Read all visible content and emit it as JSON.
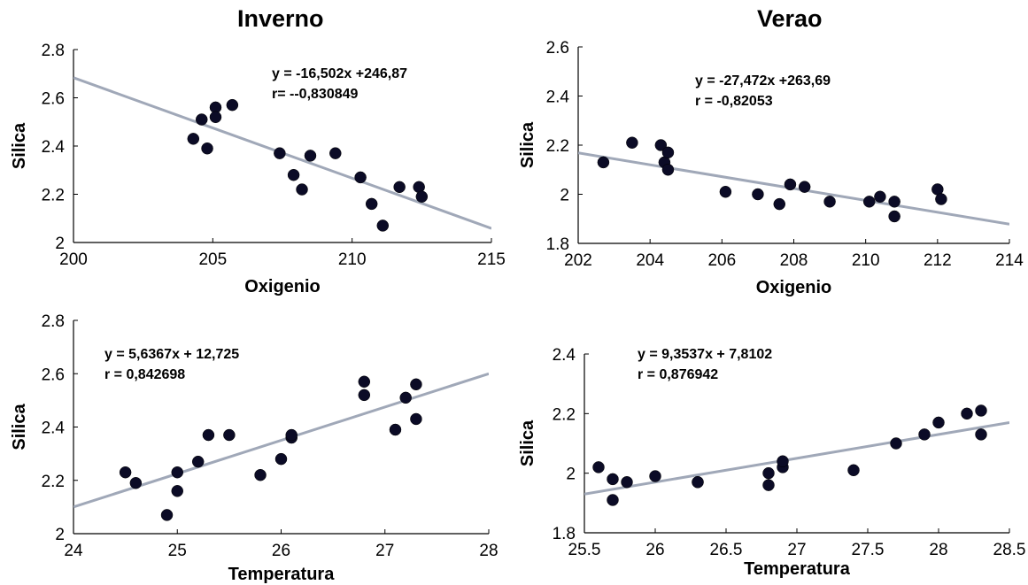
{
  "titles": {
    "left": "Inverno",
    "right": "Verao"
  },
  "chart_data": [
    {
      "type": "scatter",
      "title": "Inverno",
      "xlabel": "Oxigenio",
      "ylabel": "Silica",
      "xlim": [
        200,
        215
      ],
      "ylim": [
        2,
        2.8
      ],
      "xticks": [
        "200",
        "205",
        "210",
        "215"
      ],
      "yticks": [
        "2",
        "2.2",
        "2.4",
        "2.6",
        "2.8"
      ],
      "annotation": [
        "y = -16,502x +246,87",
        "r= --0,830849"
      ],
      "trendline": {
        "slope": -0.0416667,
        "intercept": 11.0167
      },
      "points": [
        [
          204.3,
          2.43
        ],
        [
          204.6,
          2.51
        ],
        [
          204.8,
          2.39
        ],
        [
          205.1,
          2.56
        ],
        [
          205.1,
          2.52
        ],
        [
          205.7,
          2.57
        ],
        [
          207.4,
          2.37
        ],
        [
          207.9,
          2.28
        ],
        [
          208.2,
          2.22
        ],
        [
          208.5,
          2.36
        ],
        [
          209.4,
          2.37
        ],
        [
          210.3,
          2.27
        ],
        [
          210.7,
          2.16
        ],
        [
          211.1,
          2.07
        ],
        [
          211.7,
          2.23
        ],
        [
          212.4,
          2.23
        ],
        [
          212.5,
          2.19
        ]
      ]
    },
    {
      "type": "scatter",
      "title": "Verao",
      "xlabel": "Oxigenio",
      "ylabel": "Silica",
      "xlim": [
        202,
        214
      ],
      "ylim": [
        1.8,
        2.6
      ],
      "xticks": [
        "202",
        "204",
        "206",
        "208",
        "210",
        "212",
        "214"
      ],
      "yticks": [
        "1.8",
        "2",
        "2.2",
        "2.4",
        "2.6"
      ],
      "annotation": [
        "y = -27,472x +263,69",
        "r = -0,82053"
      ],
      "trendline": {
        "slope": -0.0241667,
        "intercept": 7.05
      },
      "points": [
        [
          202.7,
          2.13
        ],
        [
          203.5,
          2.21
        ],
        [
          204.3,
          2.2
        ],
        [
          204.4,
          2.13
        ],
        [
          204.5,
          2.17
        ],
        [
          204.5,
          2.1
        ],
        [
          206.1,
          2.01
        ],
        [
          207,
          2
        ],
        [
          207.6,
          1.96
        ],
        [
          207.9,
          2.04
        ],
        [
          208.3,
          2.03
        ],
        [
          209,
          1.97
        ],
        [
          210.1,
          1.97
        ],
        [
          210.4,
          1.99
        ],
        [
          210.8,
          1.97
        ],
        [
          210.8,
          1.91
        ],
        [
          212,
          2.02
        ],
        [
          212.1,
          1.98
        ]
      ]
    },
    {
      "type": "scatter",
      "title": "",
      "xlabel": "Temperatura",
      "ylabel": "Silica",
      "xlim": [
        24,
        28
      ],
      "ylim": [
        2,
        2.8
      ],
      "xticks": [
        "24",
        "25",
        "26",
        "27",
        "28"
      ],
      "yticks": [
        "2",
        "2.2",
        "2.4",
        "2.6",
        "2.8"
      ],
      "annotation": [
        "y = 5,6367x + 12,725",
        "r = 0,842698"
      ],
      "trendline": {
        "slope": 0.125,
        "intercept": -0.9
      },
      "points": [
        [
          24.5,
          2.23
        ],
        [
          24.6,
          2.19
        ],
        [
          24.9,
          2.07
        ],
        [
          25,
          2.23
        ],
        [
          25,
          2.16
        ],
        [
          25.2,
          2.27
        ],
        [
          25.3,
          2.37
        ],
        [
          25.5,
          2.37
        ],
        [
          25.8,
          2.22
        ],
        [
          26,
          2.28
        ],
        [
          26.1,
          2.36
        ],
        [
          26.1,
          2.37
        ],
        [
          26.8,
          2.57
        ],
        [
          26.8,
          2.52
        ],
        [
          27.1,
          2.39
        ],
        [
          27.2,
          2.51
        ],
        [
          27.3,
          2.43
        ],
        [
          27.3,
          2.56
        ]
      ]
    },
    {
      "type": "scatter",
      "title": "",
      "xlabel": "Temperatura",
      "ylabel": "Silica",
      "xlim": [
        25.5,
        28.5
      ],
      "ylim": [
        1.8,
        2.4
      ],
      "xticks": [
        "25.5",
        "26",
        "26.5",
        "27",
        "27.5",
        "28",
        "28.5"
      ],
      "yticks": [
        "1.8",
        "2",
        "2.2",
        "2.4"
      ],
      "annotation": [
        "y = 9,3537x + 7,8102",
        "r = 0,876942"
      ],
      "trendline": {
        "slope": 0.08,
        "intercept": -0.11
      },
      "points": [
        [
          25.6,
          2.02
        ],
        [
          25.7,
          1.98
        ],
        [
          25.7,
          1.91
        ],
        [
          25.8,
          1.97
        ],
        [
          26,
          1.99
        ],
        [
          26.3,
          1.97
        ],
        [
          26.3,
          1.97
        ],
        [
          26.8,
          1.96
        ],
        [
          26.8,
          2
        ],
        [
          26.9,
          2.02
        ],
        [
          26.9,
          2.04
        ],
        [
          27.4,
          2.01
        ],
        [
          27.7,
          2.1
        ],
        [
          27.9,
          2.13
        ],
        [
          28,
          2.17
        ],
        [
          28.2,
          2.2
        ],
        [
          28.3,
          2.13
        ],
        [
          28.3,
          2.21
        ]
      ]
    }
  ]
}
